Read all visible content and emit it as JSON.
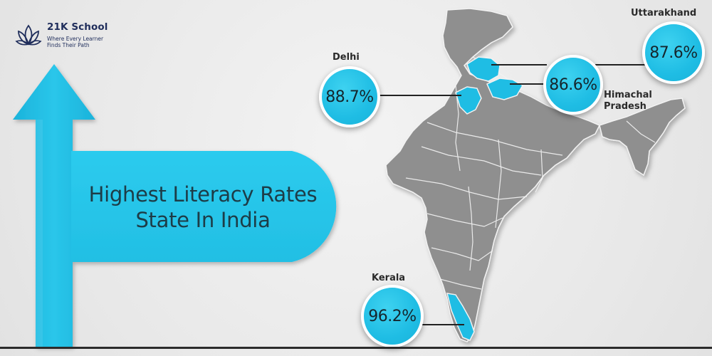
{
  "brand": {
    "name": "21K School",
    "tagline_line1": "Where Every Learner",
    "tagline_line2": "Finds Their Path",
    "colors": {
      "navy": "#1f2d5b",
      "accent": "#1fbde4",
      "map_gray": "#8e8e8e"
    }
  },
  "headline": {
    "line1": "Highest Literacy Rates",
    "line2": "State In India"
  },
  "states": {
    "delhi": {
      "name": "Delhi",
      "rate": "88.7%"
    },
    "himachal": {
      "name_line1": "Himachal",
      "name_line2": "Pradesh",
      "rate": "86.6%"
    },
    "uttarakhand": {
      "name": "Uttarakhand",
      "rate": "87.6%"
    },
    "kerala": {
      "name": "Kerala",
      "rate": "96.2%"
    }
  },
  "icons": {
    "logo": "lotus-icon",
    "arrow": "up-arrow-icon",
    "map": "india-map"
  }
}
